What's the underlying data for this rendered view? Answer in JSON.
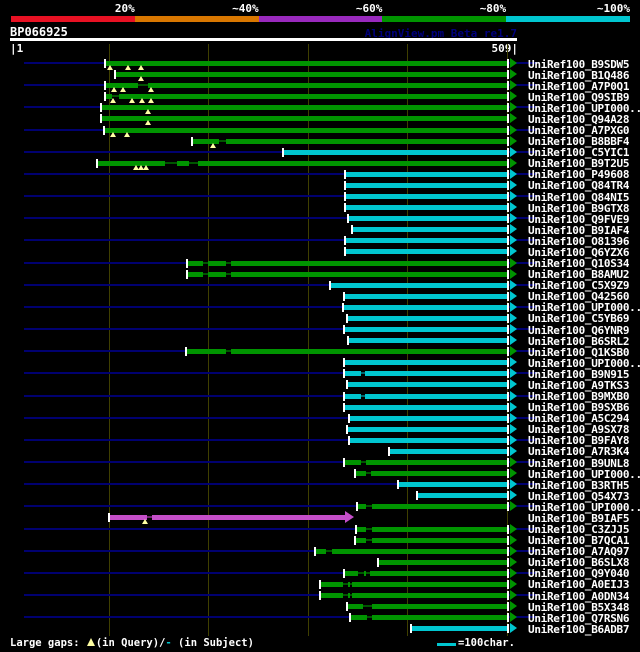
{
  "header": {
    "accession": "BP066925",
    "app_note": "AlignView.pm Beta re1.7"
  },
  "scale_bar": {
    "segments": [
      {
        "label": "20%",
        "color": "#e81123"
      },
      {
        "label": "~40%",
        "color": "#d97700"
      },
      {
        "label": "~60%",
        "color": "#9929bd"
      },
      {
        "label": "~80%",
        "color": "#009400"
      },
      {
        "label": "~100%",
        "color": "#00c6d0"
      }
    ]
  },
  "ruler": {
    "start_label": "|1",
    "end_label": "509|",
    "query_length": 509
  },
  "legend": {
    "prefix": "Large gaps: ",
    "query_note": "(in Query)/",
    "subject_dash": "-",
    "subject_note": " (in Subject)",
    "scale_label": "=100char."
  },
  "colors": {
    "green": "#009400",
    "cyan": "#00c6d0",
    "magenta": "#c44ec8",
    "navy": "#000070",
    "grid": "#3f3f00",
    "gap_marker": "#ffffa3",
    "white": "#ffffff"
  },
  "chart_data": {
    "type": "bar",
    "orientation": "horizontal",
    "title": "BP066925",
    "xlim": [
      1,
      509
    ],
    "gridlines": [
      100,
      200,
      300,
      400,
      500
    ],
    "rows": [
      {
        "label": "UniRef100_B9SDW5",
        "color": "green",
        "start": 96,
        "end": 509,
        "navy": true,
        "gaps": [
          101,
          119,
          132
        ]
      },
      {
        "label": "UniRef100_B1Q486",
        "color": "green",
        "start": 106,
        "end": 509,
        "navy": false,
        "gaps": [
          132
        ]
      },
      {
        "label": "UniRef100_A7P0Q1",
        "color": "green",
        "start": 96,
        "end": 509,
        "navy": true,
        "thin": [
          [
            129,
            139
          ]
        ],
        "gaps": [
          105,
          114,
          143
        ]
      },
      {
        "label": "UniRef100_Q9SIB9",
        "color": "green",
        "start": 96,
        "end": 509,
        "navy": false,
        "thin": [
          [
            103,
            110
          ]
        ],
        "gaps": [
          104,
          123,
          133,
          143
        ]
      },
      {
        "label": "UniRef100_UPI000..",
        "color": "green",
        "start": 92,
        "end": 509,
        "navy": true,
        "gaps": [
          139
        ]
      },
      {
        "label": "UniRef100_Q94A28",
        "color": "green",
        "start": 92,
        "end": 509,
        "navy": false,
        "gaps": [
          139
        ]
      },
      {
        "label": "UniRef100_A7PXG0",
        "color": "green",
        "start": 95,
        "end": 509,
        "navy": true,
        "gaps": [
          104,
          118
        ]
      },
      {
        "label": "UniRef100_B8BBF4",
        "color": "green",
        "start": 184,
        "end": 509,
        "navy": false,
        "thin": [
          [
            211,
            218
          ]
        ],
        "gaps": [
          205
        ]
      },
      {
        "label": "UniRef100_C5YIC1",
        "color": "cyan",
        "start": 275,
        "end": 509,
        "navy": true
      },
      {
        "label": "UniRef100_B9T2U5",
        "color": "green",
        "start": 88,
        "end": 509,
        "navy": false,
        "thin": [
          [
            157,
            169
          ],
          [
            181,
            190
          ]
        ],
        "gaps": [
          127,
          132,
          137
        ]
      },
      {
        "label": "UniRef100_P49608",
        "color": "cyan",
        "start": 337,
        "end": 509,
        "navy": true
      },
      {
        "label": "UniRef100_Q84TR4",
        "color": "cyan",
        "start": 337,
        "end": 509,
        "navy": false
      },
      {
        "label": "UniRef100_Q84NI5",
        "color": "cyan",
        "start": 337,
        "end": 509,
        "navy": true
      },
      {
        "label": "UniRef100_B9GTX8",
        "color": "cyan",
        "start": 337,
        "end": 509,
        "navy": false
      },
      {
        "label": "UniRef100_Q9FVE9",
        "color": "cyan",
        "start": 340,
        "end": 509,
        "navy": true
      },
      {
        "label": "UniRef100_B9IAF4",
        "color": "cyan",
        "start": 344,
        "end": 509,
        "navy": false
      },
      {
        "label": "UniRef100_O81396",
        "color": "cyan",
        "start": 337,
        "end": 509,
        "navy": true
      },
      {
        "label": "UniRef100_Q6YZX6",
        "color": "cyan",
        "start": 337,
        "end": 509,
        "navy": false
      },
      {
        "label": "UniRef100_Q10S34",
        "color": "green",
        "start": 179,
        "end": 509,
        "navy": true,
        "thin": [
          [
            195,
            200
          ],
          [
            218,
            223
          ]
        ]
      },
      {
        "label": "UniRef100_B8AMU2",
        "color": "green",
        "start": 179,
        "end": 509,
        "navy": false,
        "thin": [
          [
            195,
            200
          ],
          [
            218,
            223
          ]
        ]
      },
      {
        "label": "UniRef100_C5X9Z9",
        "color": "cyan",
        "start": 322,
        "end": 509,
        "navy": true
      },
      {
        "label": "UniRef100_Q42560",
        "color": "cyan",
        "start": 336,
        "end": 509,
        "navy": false
      },
      {
        "label": "UniRef100_UPI000..",
        "color": "cyan",
        "start": 335,
        "end": 509,
        "navy": true
      },
      {
        "label": "UniRef100_C5YB69",
        "color": "cyan",
        "start": 339,
        "end": 509,
        "navy": false
      },
      {
        "label": "UniRef100_Q6YNR9",
        "color": "cyan",
        "start": 336,
        "end": 509,
        "navy": true
      },
      {
        "label": "UniRef100_B6SRL2",
        "color": "cyan",
        "start": 340,
        "end": 509,
        "navy": false
      },
      {
        "label": "UniRef100_Q1KSB0",
        "color": "green",
        "start": 178,
        "end": 509,
        "navy": true,
        "thin": [
          [
            218,
            223
          ]
        ]
      },
      {
        "label": "UniRef100_UPI000..",
        "color": "cyan",
        "start": 336,
        "end": 509,
        "navy": false
      },
      {
        "label": "UniRef100_B9N915",
        "color": "cyan",
        "start": 336,
        "end": 509,
        "navy": true,
        "thin": [
          [
            353,
            357
          ]
        ]
      },
      {
        "label": "UniRef100_A9TKS3",
        "color": "cyan",
        "start": 339,
        "end": 509,
        "navy": false
      },
      {
        "label": "UniRef100_B9MXB0",
        "color": "cyan",
        "start": 336,
        "end": 509,
        "navy": true,
        "thin": [
          [
            353,
            357
          ]
        ]
      },
      {
        "label": "UniRef100_B9SXB6",
        "color": "cyan",
        "start": 336,
        "end": 509,
        "navy": false
      },
      {
        "label": "UniRef100_A5C294",
        "color": "cyan",
        "start": 341,
        "end": 509,
        "navy": true
      },
      {
        "label": "UniRef100_A9SX78",
        "color": "cyan",
        "start": 339,
        "end": 509,
        "navy": false
      },
      {
        "label": "UniRef100_B9FAY8",
        "color": "cyan",
        "start": 341,
        "end": 509,
        "navy": true
      },
      {
        "label": "UniRef100_A7R3K4",
        "color": "cyan",
        "start": 381,
        "end": 509,
        "navy": false
      },
      {
        "label": "UniRef100_B9UNL8",
        "color": "green",
        "start": 336,
        "end": 509,
        "navy": true,
        "thin": [
          [
            353,
            358
          ]
        ]
      },
      {
        "label": "UniRef100_UPI000..",
        "color": "green",
        "start": 347,
        "end": 509,
        "navy": false,
        "thin": [
          [
            358,
            363
          ]
        ]
      },
      {
        "label": "UniRef100_B3RTH5",
        "color": "cyan",
        "start": 390,
        "end": 509,
        "navy": true
      },
      {
        "label": "UniRef100_Q54X73",
        "color": "cyan",
        "start": 410,
        "end": 509,
        "navy": false
      },
      {
        "label": "UniRef100_UPI000..",
        "color": "green",
        "start": 349,
        "end": 509,
        "navy": true,
        "thin": [
          [
            358,
            364
          ]
        ]
      },
      {
        "label": "UniRef100_B9IAF5",
        "color": "magenta",
        "start": 100,
        "end": 337,
        "navy": false,
        "thin": [
          [
            138,
            143
          ]
        ],
        "gaps": [
          136
        ]
      },
      {
        "label": "UniRef100_C3ZJJ5",
        "color": "green",
        "start": 348,
        "end": 509,
        "navy": true,
        "thin": [
          [
            358,
            364
          ]
        ]
      },
      {
        "label": "UniRef100_B7QCA1",
        "color": "green",
        "start": 347,
        "end": 509,
        "navy": false,
        "thin": [
          [
            358,
            364
          ]
        ]
      },
      {
        "label": "UniRef100_A7AQ97",
        "color": "green",
        "start": 307,
        "end": 509,
        "navy": true,
        "thin": [
          [
            318,
            324
          ]
        ]
      },
      {
        "label": "UniRef100_B6SLX8",
        "color": "green",
        "start": 370,
        "end": 509,
        "navy": false
      },
      {
        "label": "UniRef100_Q9Y040",
        "color": "green",
        "start": 336,
        "end": 509,
        "navy": true,
        "thin": [
          [
            350,
            356
          ],
          [
            358,
            362
          ]
        ]
      },
      {
        "label": "UniRef100_A0EIJ3",
        "color": "green",
        "start": 312,
        "end": 509,
        "navy": false,
        "thin": [
          [
            335,
            340
          ],
          [
            342,
            344
          ]
        ]
      },
      {
        "label": "UniRef100_A0DN34",
        "color": "green",
        "start": 312,
        "end": 509,
        "navy": true,
        "thin": [
          [
            335,
            340
          ],
          [
            342,
            344
          ]
        ]
      },
      {
        "label": "UniRef100_B5X348",
        "color": "green",
        "start": 339,
        "end": 509,
        "navy": false,
        "thin": [
          [
            355,
            364
          ]
        ]
      },
      {
        "label": "UniRef100_Q7RSN6",
        "color": "green",
        "start": 342,
        "end": 509,
        "navy": true,
        "thin": [
          [
            359,
            364
          ]
        ]
      },
      {
        "label": "UniRef100_B6ADB7",
        "color": "cyan",
        "start": 404,
        "end": 509,
        "navy": false
      }
    ]
  }
}
